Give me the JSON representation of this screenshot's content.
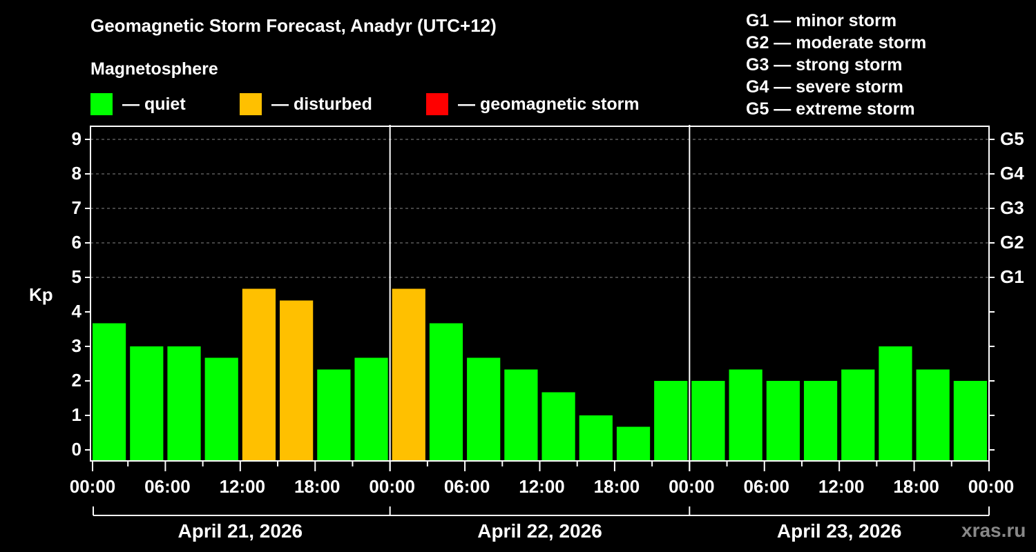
{
  "header": {
    "title": "Geomagnetic Storm Forecast, Anadyr (UTC+12)",
    "subtitle": "Magnetosphere"
  },
  "legend": [
    {
      "label": "— quiet",
      "color": "#00ff00"
    },
    {
      "label": "— disturbed",
      "color": "#ffc000"
    },
    {
      "label": "— geomagnetic storm",
      "color": "#ff0000"
    }
  ],
  "storm_scale": [
    "G1 — minor storm",
    "G2 — moderate storm",
    "G3 — strong storm",
    "G4 — severe storm",
    "G5 — extreme storm"
  ],
  "brand": "xras.ru",
  "chart_data": {
    "type": "bar",
    "title": "Geomagnetic Storm Forecast, Anadyr (UTC+12)",
    "xlabel": "",
    "ylabel": "Kp",
    "ylim": [
      -0.33,
      9.4
    ],
    "yticks": [
      0,
      1,
      2,
      3,
      4,
      5,
      6,
      7,
      8,
      9
    ],
    "right_ticks": [
      {
        "kp": 5,
        "label": "G1"
      },
      {
        "kp": 6,
        "label": "G2"
      },
      {
        "kp": 7,
        "label": "G3"
      },
      {
        "kp": 8,
        "label": "G4"
      },
      {
        "kp": 9,
        "label": "G5"
      }
    ],
    "grid": "dashed horizontal at Kp 5-9",
    "xtick_labels": [
      "00:00",
      "06:00",
      "12:00",
      "18:00",
      "00:00",
      "06:00",
      "12:00",
      "18:00",
      "00:00",
      "06:00",
      "12:00",
      "18:00",
      "00:00"
    ],
    "days": [
      "April 21, 2026",
      "April 22, 2026",
      "April 23, 2026"
    ],
    "categories": [
      "Apr21 00-03",
      "Apr21 03-06",
      "Apr21 06-09",
      "Apr21 09-12",
      "Apr21 12-15",
      "Apr21 15-18",
      "Apr21 18-21",
      "Apr21 21-24",
      "Apr22 00-03",
      "Apr22 03-06",
      "Apr22 06-09",
      "Apr22 09-12",
      "Apr22 12-15",
      "Apr22 15-18",
      "Apr22 18-21",
      "Apr22 21-24",
      "Apr23 00-03",
      "Apr23 03-06",
      "Apr23 06-09",
      "Apr23 09-12",
      "Apr23 12-15",
      "Apr23 15-18",
      "Apr23 18-21",
      "Apr23 21-24"
    ],
    "values": [
      3.67,
      3.0,
      3.0,
      2.67,
      4.67,
      4.33,
      2.33,
      2.67,
      4.67,
      3.67,
      2.67,
      2.33,
      1.67,
      1.0,
      0.67,
      2.0,
      2.0,
      2.33,
      2.0,
      2.0,
      2.33,
      3.0,
      2.33,
      2.0
    ],
    "status": [
      "quiet",
      "quiet",
      "quiet",
      "quiet",
      "disturbed",
      "disturbed",
      "quiet",
      "quiet",
      "disturbed",
      "quiet",
      "quiet",
      "quiet",
      "quiet",
      "quiet",
      "quiet",
      "quiet",
      "quiet",
      "quiet",
      "quiet",
      "quiet",
      "quiet",
      "quiet",
      "quiet",
      "quiet"
    ],
    "colors": {
      "quiet": "#00ff00",
      "disturbed": "#ffc000",
      "storm": "#ff0000"
    }
  }
}
